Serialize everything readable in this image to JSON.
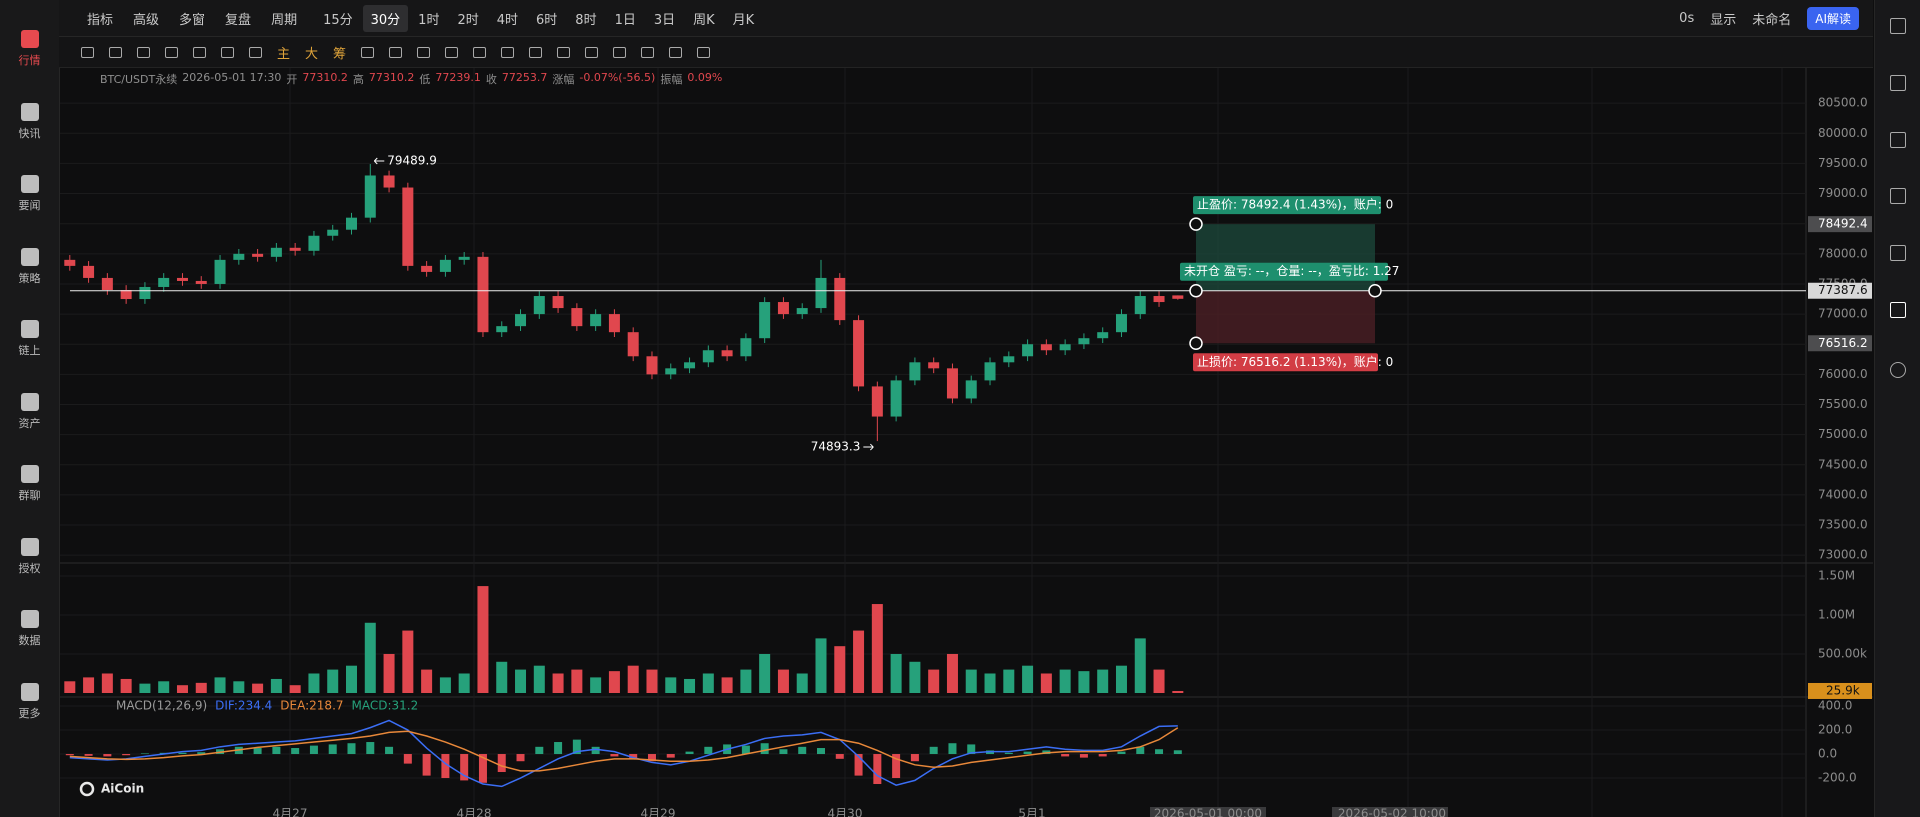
{
  "ui": {
    "toolbar_left": [
      "指标",
      "高级",
      "多窗",
      "复盘",
      "周期"
    ],
    "periods": [
      "15分",
      "30分",
      "1时",
      "2时",
      "4时",
      "6时",
      "8时",
      "1日",
      "3日",
      "周K",
      "月K"
    ],
    "toolbar_right": [
      "0s",
      "显示",
      "未命名",
      "AI解读"
    ],
    "tools": [
      "主",
      "大",
      "筹"
    ],
    "sidebar": [
      "行情",
      "快讯",
      "要闻",
      "策略",
      "链上",
      "资产",
      "群聊",
      "授权",
      "数据",
      "更多"
    ],
    "watermark": "AiCoin"
  },
  "chart_data": {
    "type": "candlestick",
    "symbol": "BTC/USDT永续",
    "time": "2026-05-01 17:30",
    "info": [
      {
        "label": "开",
        "value": 77310.2
      },
      {
        "label": "高",
        "value": 77310.2
      },
      {
        "label": "低",
        "value": 77239.1
      },
      {
        "label": "收",
        "value": 77253.7
      }
    ],
    "change_label": "涨幅",
    "change": "-0.07%(-56.5)",
    "amplitude_label": "振幅",
    "amplitude": "0.09%",
    "up_color": "#26a17b",
    "down_color": "#e0474e",
    "open": [
      77900,
      77800,
      77600,
      77400,
      77250,
      77450,
      77600,
      77550,
      77500,
      77900,
      78000,
      77950,
      78100,
      78050,
      78300,
      78400,
      78600,
      79300,
      79100,
      77800,
      77700,
      77900,
      77950,
      76700,
      76800,
      77000,
      77300,
      77100,
      76800,
      77000,
      76700,
      76300,
      76000,
      76100,
      76200,
      76400,
      76300,
      76600,
      77200,
      77000,
      77100,
      77600,
      76900,
      75800,
      75300,
      75900,
      76200,
      76100,
      75600,
      75900,
      76200,
      76300,
      76500,
      76400,
      76500,
      76600,
      76700,
      77000,
      77300,
      77310.2
    ],
    "high": [
      77980,
      77880,
      77680,
      77480,
      77530,
      77680,
      77680,
      77630,
      77980,
      78080,
      78080,
      78180,
      78180,
      78380,
      78480,
      78680,
      79489.9,
      79380,
      79180,
      77880,
      77980,
      78030,
      78030,
      76880,
      77080,
      77380,
      77380,
      77180,
      77080,
      77080,
      76780,
      76380,
      76180,
      76280,
      76480,
      76480,
      76680,
      77280,
      77280,
      77180,
      77900,
      77680,
      76980,
      75880,
      75980,
      76280,
      76280,
      76180,
      75980,
      76280,
      76380,
      76580,
      76580,
      76580,
      76680,
      76780,
      77080,
      77380,
      77380,
      77310.2
    ],
    "low": [
      77720,
      77520,
      77320,
      77170,
      77170,
      77370,
      77470,
      77420,
      77420,
      77820,
      77870,
      77870,
      77970,
      77970,
      78220,
      78320,
      78520,
      79020,
      77720,
      77620,
      77620,
      77820,
      76620,
      76620,
      76720,
      76920,
      77020,
      76720,
      76720,
      76620,
      76220,
      75920,
      75920,
      76020,
      76120,
      76220,
      76220,
      76520,
      76920,
      76920,
      77020,
      76820,
      75720,
      74893.3,
      75220,
      75820,
      76020,
      75520,
      75520,
      75820,
      76120,
      76220,
      76320,
      76320,
      76420,
      76520,
      76620,
      76920,
      77120,
      77239.1
    ],
    "close": [
      77800,
      77600,
      77400,
      77250,
      77450,
      77600,
      77550,
      77500,
      77900,
      78000,
      77950,
      78100,
      78050,
      78300,
      78400,
      78600,
      79300,
      79100,
      77800,
      77700,
      77900,
      77950,
      76700,
      76800,
      77000,
      77300,
      77100,
      76800,
      77000,
      76700,
      76300,
      76000,
      76100,
      76200,
      76400,
      76300,
      76600,
      77200,
      77000,
      77100,
      77600,
      76900,
      75800,
      75300,
      75900,
      76200,
      76100,
      75600,
      75900,
      76200,
      76300,
      76500,
      76400,
      76500,
      76600,
      76700,
      77000,
      77300,
      77200,
      77253.7
    ],
    "high_mark": 79489.9,
    "low_mark": 74893.3,
    "ylim": [
      72870,
      81100
    ],
    "yticks": [
      {
        "value": 73000,
        "label": "73000.0"
      },
      {
        "value": 73500,
        "label": "73500.0"
      },
      {
        "value": 74000,
        "label": "74000.0"
      },
      {
        "value": 74500,
        "label": "74500.0"
      },
      {
        "value": 75000,
        "label": "75000.0"
      },
      {
        "value": 75500,
        "label": "75500.0"
      },
      {
        "value": 76000,
        "label": "76000.0"
      },
      {
        "value": 76500,
        "label": "76500.0"
      },
      {
        "value": 77000,
        "label": "77000.0"
      },
      {
        "value": 77500,
        "label": "77500.0"
      },
      {
        "value": 78000,
        "label": "78000.0"
      },
      {
        "value": 78500,
        "label": "78500.0"
      },
      {
        "value": 79000,
        "label": "79000.0"
      },
      {
        "value": 79500,
        "label": "79500.0"
      },
      {
        "value": 80000,
        "label": "80000.0"
      },
      {
        "value": 80500,
        "label": "80500.0"
      }
    ],
    "current_price": 77387.6,
    "take_profit": 78492.4,
    "stop_loss": 76516.2,
    "tp_label": "止盈价: 78492.4 (1.43%)，账户: 0",
    "position_label": "未开仓 盈亏: --，仓量: --，盈亏比: 1.27",
    "sl_label": "止损价: 76516.2 (1.13%)，账户: 0",
    "time_labels": [
      "4月27",
      "4月28",
      "4月29",
      "4月30",
      "5月1",
      "2026-05-01 00:00",
      "2026-05-02 10:00"
    ],
    "volume": {
      "values": [
        150000,
        200000,
        250000,
        180000,
        120000,
        150000,
        100000,
        130000,
        200000,
        150000,
        120000,
        180000,
        100000,
        250000,
        300000,
        350000,
        900000,
        500000,
        800000,
        300000,
        200000,
        250000,
        1370000,
        400000,
        300000,
        350000,
        250000,
        300000,
        200000,
        280000,
        350000,
        300000,
        200000,
        180000,
        250000,
        200000,
        300000,
        500000,
        300000,
        250000,
        700000,
        600000,
        800000,
        1140000,
        500000,
        400000,
        300000,
        500000,
        300000,
        250000,
        300000,
        350000,
        250000,
        300000,
        280000,
        300000,
        350000,
        700000,
        300000,
        25900
      ],
      "ylim": [
        0,
        1666000
      ],
      "yticks": [
        {
          "value": 500000,
          "label": "500.00k"
        },
        {
          "value": 1000000,
          "label": "1.00M"
        },
        {
          "value": 1500000,
          "label": "1.50M"
        }
      ],
      "last": {
        "value": 25900,
        "label": "25.9k"
      }
    },
    "macd": {
      "name": "MACD(12,26,9)",
      "dif_label": "DIF:234.4",
      "dea_label": "DEA:218.7",
      "macd_label": "MACD:31.2",
      "dif_color": "#3b6ef5",
      "dea_color": "#e8883a",
      "hist": [
        -10,
        -15,
        -20,
        -10,
        5,
        10,
        10,
        15,
        40,
        60,
        50,
        60,
        50,
        70,
        80,
        90,
        100,
        60,
        -80,
        -180,
        -200,
        -220,
        -240,
        -150,
        -60,
        60,
        100,
        120,
        60,
        -20,
        -40,
        -60,
        -30,
        20,
        60,
        80,
        70,
        90,
        40,
        60,
        50,
        -40,
        -180,
        -250,
        -200,
        -60,
        60,
        90,
        80,
        30,
        10,
        20,
        30,
        -20,
        -30,
        -20,
        20,
        60,
        40,
        31.2
      ],
      "dif": [
        -30,
        -40,
        -50,
        -40,
        -20,
        0,
        20,
        30,
        60,
        80,
        90,
        100,
        110,
        130,
        150,
        170,
        220,
        280,
        200,
        50,
        -80,
        -180,
        -250,
        -270,
        -200,
        -120,
        -40,
        20,
        40,
        20,
        -30,
        -70,
        -90,
        -60,
        -10,
        40,
        80,
        130,
        150,
        160,
        180,
        120,
        -20,
        -180,
        -260,
        -220,
        -120,
        -40,
        10,
        20,
        20,
        40,
        60,
        40,
        30,
        30,
        60,
        150,
        230,
        234.4
      ],
      "dea": [
        -20,
        -30,
        -40,
        -45,
        -40,
        -30,
        -15,
        -5,
        15,
        35,
        55,
        70,
        85,
        100,
        115,
        130,
        150,
        180,
        190,
        150,
        100,
        40,
        -30,
        -100,
        -140,
        -140,
        -120,
        -90,
        -60,
        -40,
        -40,
        -50,
        -60,
        -60,
        -50,
        -30,
        0,
        30,
        60,
        90,
        120,
        120,
        90,
        30,
        -40,
        -90,
        -110,
        -100,
        -70,
        -50,
        -30,
        -10,
        10,
        20,
        20,
        20,
        30,
        60,
        120,
        218.7
      ],
      "ylim": [
        -525,
        467
      ],
      "yticks": [
        {
          "value": -200,
          "label": "-200.0"
        },
        {
          "value": 0,
          "label": "0.0"
        },
        {
          "value": 200,
          "label": "200.0"
        },
        {
          "value": 400,
          "label": "400.0"
        }
      ]
    }
  }
}
